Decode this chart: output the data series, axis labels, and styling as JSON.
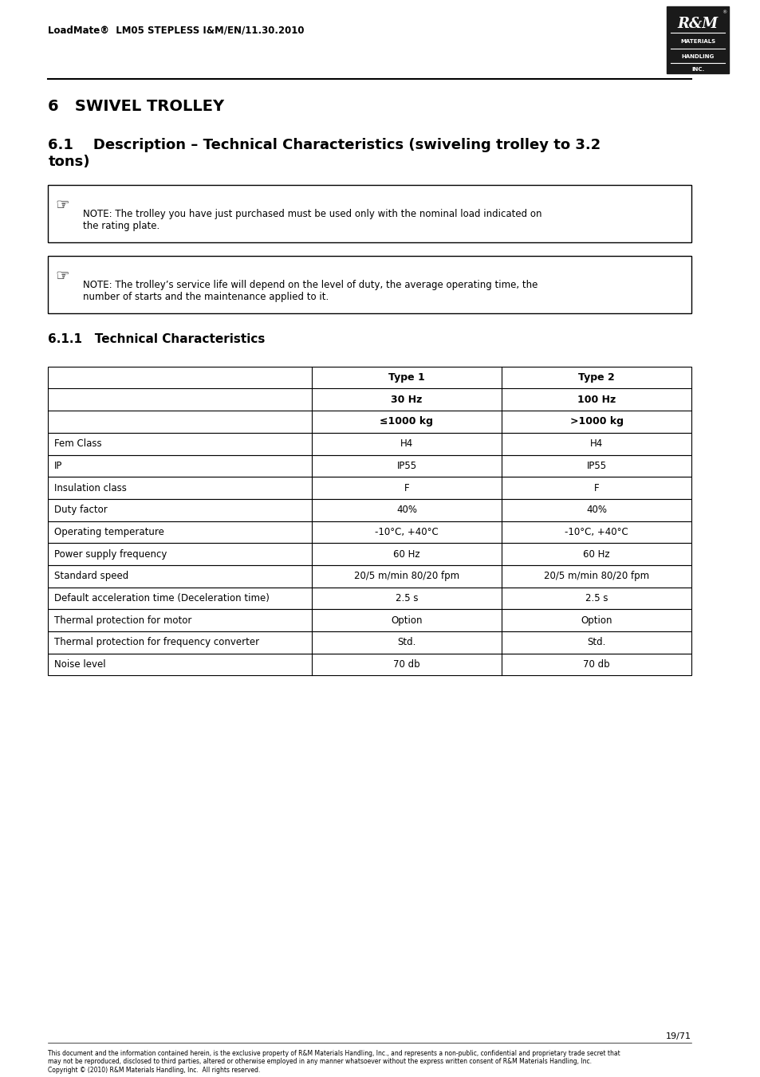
{
  "page_bg": "#ffffff",
  "header_text": "LoadMate®  LM05 STEPLESS I&M/EN/11.30.2010",
  "header_font_size": 9,
  "logo_bg": "#1a1a1a",
  "logo_lines": [
    "R&M",
    "MATERIALS",
    "HANDLING",
    "INC."
  ],
  "section_title": "6   SWIVEL TROLLEY",
  "subsection_title": "6.1    Description – Technical Characteristics (swiveling trolley to 3.2\ntons)",
  "note1_text": "NOTE: The trolley you have just purchased must be used only with the nominal load indicated on\nthe rating plate.",
  "note2_text": "NOTE: The trolley’s service life will depend on the level of duty, the average operating time, the\nnumber of starts and the maintenance applied to it.",
  "sub_subsection_title": "6.1.1   Technical Characteristics",
  "table_col_headers": [
    [
      "Type 1",
      "30 Hz",
      "≤1000 kg"
    ],
    [
      "Type 2",
      "100 Hz",
      ">1000 kg"
    ]
  ],
  "table_rows": [
    [
      "Fem Class",
      "H4",
      "H4"
    ],
    [
      "IP",
      "IP55",
      "IP55"
    ],
    [
      "Insulation class",
      "F",
      "F"
    ],
    [
      "Duty factor",
      "40%",
      "40%"
    ],
    [
      "Operating temperature",
      "-10°C, +40°C",
      "-10°C, +40°C"
    ],
    [
      "Power supply frequency",
      "60 Hz",
      "60 Hz"
    ],
    [
      "Standard speed",
      "20/5 m/min 80/20 fpm",
      "20/5 m/min 80/20 fpm"
    ],
    [
      "Default acceleration time (Deceleration time)",
      "2.5 s",
      "2.5 s"
    ],
    [
      "Thermal protection for motor",
      "Option",
      "Option"
    ],
    [
      "Thermal protection for frequency converter",
      "Std.",
      "Std."
    ],
    [
      "Noise level",
      "70 db",
      "70 db"
    ]
  ],
  "footer_page": "19/71",
  "footer_text": "This document and the information contained herein, is the exclusive property of R&M Materials Handling, Inc., and represents a non-public, confidential and proprietary trade secret that\nmay not be reproduced, disclosed to third parties, altered or otherwise employed in any manner whatsoever without the express written consent of R&M Materials Handling, Inc.\nCopyright © (2010) R&M Materials Handling, Inc.  All rights reserved."
}
